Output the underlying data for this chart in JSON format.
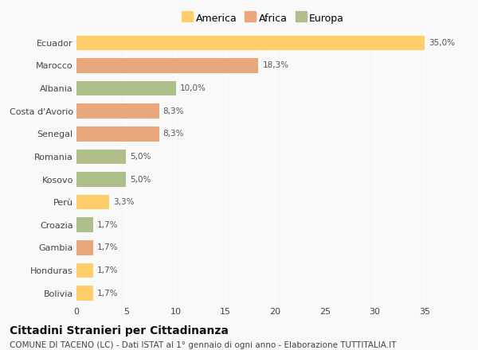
{
  "categories": [
    "Ecuador",
    "Marocco",
    "Albania",
    "Costa d'Avorio",
    "Senegal",
    "Romania",
    "Kosovo",
    "Perù",
    "Croazia",
    "Gambia",
    "Honduras",
    "Bolivia"
  ],
  "values": [
    35.0,
    18.3,
    10.0,
    8.3,
    8.3,
    5.0,
    5.0,
    3.3,
    1.7,
    1.7,
    1.7,
    1.7
  ],
  "labels": [
    "35,0%",
    "18,3%",
    "10,0%",
    "8,3%",
    "8,3%",
    "5,0%",
    "5,0%",
    "3,3%",
    "1,7%",
    "1,7%",
    "1,7%",
    "1,7%"
  ],
  "colors": [
    "#FDCE6B",
    "#E8A87C",
    "#AEBF8A",
    "#E8A87C",
    "#E8A87C",
    "#AEBF8A",
    "#AEBF8A",
    "#FDCE6B",
    "#AEBF8A",
    "#E8A87C",
    "#FDCE6B",
    "#FDCE6B"
  ],
  "legend_labels": [
    "America",
    "Africa",
    "Europa"
  ],
  "legend_colors": [
    "#FDCE6B",
    "#E8A87C",
    "#AEBF8A"
  ],
  "title": "Cittadini Stranieri per Cittadinanza",
  "subtitle": "COMUNE DI TACENO (LC) - Dati ISTAT al 1° gennaio di ogni anno - Elaborazione TUTTITALIA.IT",
  "xlabel_ticks": [
    0,
    5,
    10,
    15,
    20,
    25,
    30,
    35
  ],
  "xlim": [
    0,
    37.5
  ],
  "background_color": "#f9f9f9",
  "grid_color": "#ffffff",
  "bar_height": 0.65,
  "title_fontsize": 10,
  "subtitle_fontsize": 7.5,
  "label_fontsize": 7.5,
  "tick_fontsize": 8,
  "legend_fontsize": 9
}
